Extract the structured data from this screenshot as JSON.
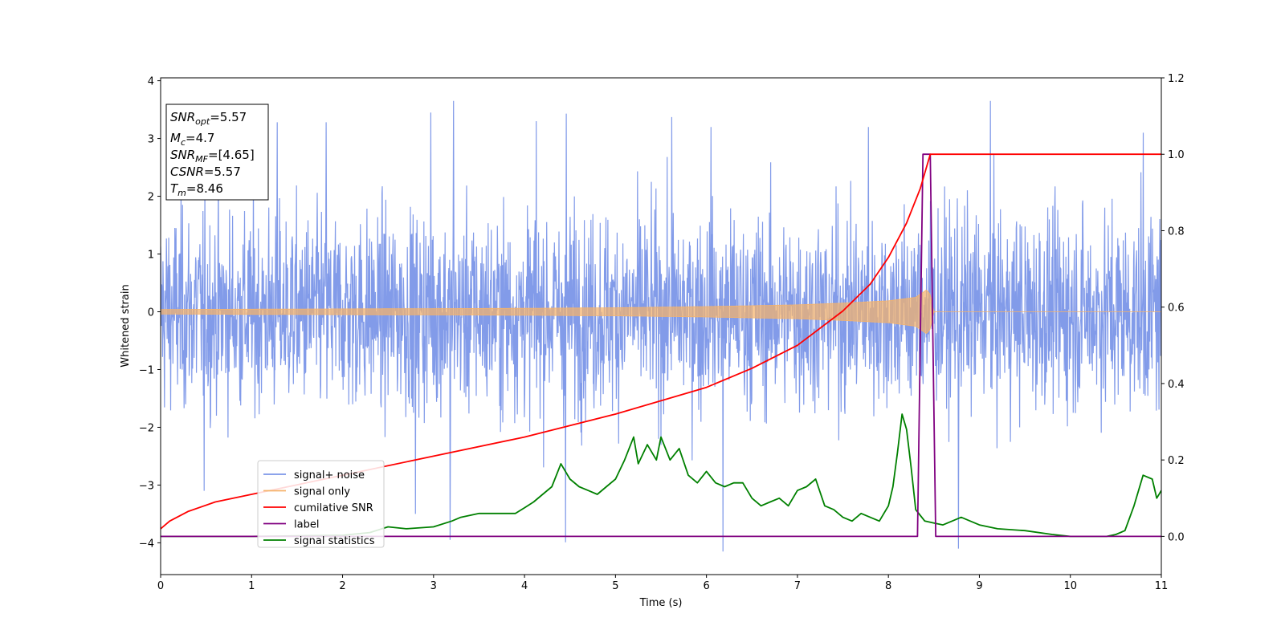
{
  "chart_data": {
    "type": "line",
    "title": "",
    "xlabel": "Time (s)",
    "ylabel": "Whitened strain",
    "xlim": [
      0,
      11
    ],
    "ylim": [
      -4.55,
      4.05
    ],
    "y2lim": [
      -0.1,
      1.2
    ],
    "xticks": [
      "0",
      "1",
      "2",
      "3",
      "4",
      "5",
      "6",
      "7",
      "8",
      "9",
      "10",
      "11"
    ],
    "yticks": [
      "−4",
      "−3",
      "−2",
      "−1",
      "0",
      "1",
      "2",
      "3",
      "4"
    ],
    "y2ticks": [
      "0.0",
      "0.2",
      "0.4",
      "0.6",
      "0.8",
      "1.0",
      "1.2"
    ],
    "grid": false,
    "legend_position": "lower-left",
    "info_box": {
      "snr_opt": "=5.57",
      "mc": "=4.7",
      "snr_mf": "=[4.65]",
      "csnr": "=5.57",
      "tm": "=8.46"
    },
    "series": [
      {
        "name": "signal+ noise",
        "axis": "left",
        "color": "#7b96e8",
        "envelope_sigma": 0.85,
        "visible_peaks": [
          [
            1.28,
            3.28
          ],
          [
            1.82,
            3.28
          ],
          [
            2.97,
            3.45
          ],
          [
            3.22,
            3.65
          ],
          [
            4.13,
            3.3
          ],
          [
            4.46,
            3.43
          ],
          [
            5.62,
            3.37
          ],
          [
            6.05,
            3.2
          ],
          [
            7.78,
            3.2
          ],
          [
            9.12,
            3.65
          ],
          [
            10.8,
            3.1
          ]
        ],
        "visible_troughs": [
          [
            0.48,
            -3.1
          ],
          [
            2.8,
            -3.5
          ],
          [
            3.18,
            -3.95
          ],
          [
            4.45,
            -3.99
          ],
          [
            6.18,
            -4.15
          ],
          [
            8.77,
            -4.1
          ]
        ]
      },
      {
        "name": "signal only",
        "axis": "left",
        "color": "#f5b36b",
        "amplitude_envelope": [
          [
            0,
            0.04
          ],
          [
            2,
            0.05
          ],
          [
            4,
            0.06
          ],
          [
            5,
            0.07
          ],
          [
            6,
            0.09
          ],
          [
            7,
            0.12
          ],
          [
            7.5,
            0.15
          ],
          [
            8,
            0.19
          ],
          [
            8.3,
            0.25
          ],
          [
            8.42,
            0.38
          ],
          [
            8.46,
            0.3
          ],
          [
            8.5,
            0.0
          ],
          [
            11,
            0.0
          ]
        ]
      },
      {
        "name": "cumilative SNR",
        "axis": "right",
        "color": "#ff0000",
        "x": [
          0,
          0.1,
          0.3,
          0.6,
          1,
          1.5,
          2,
          3,
          4,
          5,
          6,
          6.5,
          7,
          7.5,
          7.8,
          8.0,
          8.2,
          8.35,
          8.46,
          11
        ],
        "y": [
          0.02,
          0.04,
          0.065,
          0.09,
          0.11,
          0.135,
          0.16,
          0.21,
          0.26,
          0.32,
          0.39,
          0.44,
          0.5,
          0.59,
          0.66,
          0.73,
          0.82,
          0.91,
          1.0,
          1.0
        ]
      },
      {
        "name": "label",
        "axis": "right",
        "color": "#800080",
        "x": [
          0,
          8.32,
          8.38,
          8.46,
          8.52,
          11
        ],
        "y": [
          0,
          0,
          1,
          1,
          0,
          0
        ]
      },
      {
        "name": "signal statistics",
        "axis": "right",
        "color": "#008000",
        "x": [
          0,
          1.0,
          2.0,
          2.3,
          2.5,
          2.7,
          3.0,
          3.2,
          3.3,
          3.5,
          3.7,
          3.9,
          4.0,
          4.1,
          4.2,
          4.3,
          4.4,
          4.5,
          4.6,
          4.7,
          4.8,
          4.9,
          5.0,
          5.1,
          5.2,
          5.25,
          5.35,
          5.45,
          5.5,
          5.6,
          5.7,
          5.8,
          5.9,
          6.0,
          6.1,
          6.2,
          6.3,
          6.4,
          6.5,
          6.6,
          6.7,
          6.8,
          6.9,
          7.0,
          7.1,
          7.2,
          7.3,
          7.4,
          7.5,
          7.6,
          7.7,
          7.8,
          7.9,
          8.0,
          8.05,
          8.1,
          8.15,
          8.2,
          8.25,
          8.3,
          8.4,
          8.5,
          8.6,
          8.7,
          8.8,
          8.9,
          9.0,
          9.2,
          9.5,
          9.8,
          10.0,
          10.2,
          10.4,
          10.5,
          10.6,
          10.7,
          10.8,
          10.9,
          10.95,
          11.0
        ],
        "y": [
          0.0,
          0.0,
          0.003,
          0.01,
          0.025,
          0.02,
          0.025,
          0.04,
          0.05,
          0.06,
          0.06,
          0.06,
          0.075,
          0.09,
          0.11,
          0.13,
          0.19,
          0.15,
          0.13,
          0.12,
          0.11,
          0.13,
          0.15,
          0.2,
          0.26,
          0.19,
          0.24,
          0.2,
          0.26,
          0.2,
          0.23,
          0.16,
          0.14,
          0.17,
          0.14,
          0.13,
          0.14,
          0.14,
          0.1,
          0.08,
          0.09,
          0.1,
          0.08,
          0.12,
          0.13,
          0.15,
          0.08,
          0.07,
          0.05,
          0.04,
          0.06,
          0.05,
          0.04,
          0.08,
          0.13,
          0.22,
          0.32,
          0.28,
          0.18,
          0.07,
          0.04,
          0.035,
          0.03,
          0.04,
          0.05,
          0.04,
          0.03,
          0.02,
          0.015,
          0.005,
          0.0,
          0.0,
          0.0,
          0.005,
          0.015,
          0.08,
          0.16,
          0.15,
          0.1,
          0.12
        ]
      }
    ]
  }
}
